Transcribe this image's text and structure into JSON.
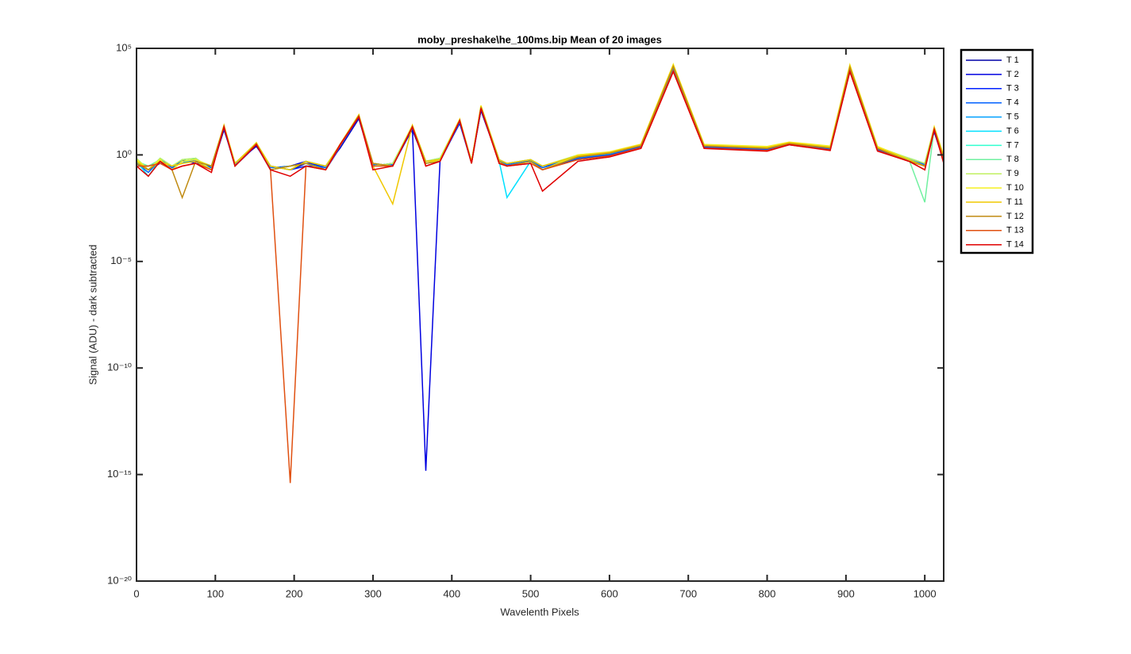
{
  "chart_data": {
    "type": "line",
    "title": "moby_preshake\\he_100ms.bip  Mean of 20 images",
    "x_label": "Wavelenth Pixels",
    "y_label": "Signal (ADU) - dark subtracted",
    "log_y": true,
    "legend": "outside-right",
    "xlim": [
      0,
      1024
    ],
    "xticks": [
      0,
      100,
      200,
      300,
      400,
      500,
      600,
      700,
      800,
      900,
      1000
    ],
    "ylim": [
      1e-20,
      100000
    ],
    "yticks": [
      {
        "value": 1e-20,
        "label": "10⁻²⁰"
      },
      {
        "value": 1e-15,
        "label": "10⁻¹⁵"
      },
      {
        "value": 1e-10,
        "label": "10⁻¹⁰"
      },
      {
        "value": 1e-05,
        "label": "10⁻⁵"
      },
      {
        "value": 1,
        "label": "10⁰"
      },
      {
        "value": 100000,
        "label": "10⁵"
      }
    ],
    "x": [
      0,
      15,
      30,
      45,
      58,
      75,
      95,
      111,
      125,
      152,
      170,
      195,
      215,
      240,
      258,
      282,
      300,
      325,
      350,
      367,
      385,
      410,
      425,
      437,
      460,
      470,
      500,
      515,
      560,
      600,
      640,
      681,
      720,
      800,
      828,
      880,
      905,
      940,
      980,
      1000,
      1012,
      1024
    ],
    "series": [
      {
        "name": "T 1",
        "color": "#0000A8",
        "values": [
          0.4,
          0.2,
          0.6,
          0.3,
          0.5,
          0.5,
          0.2,
          15,
          0.4,
          2.5,
          0.3,
          0.2,
          0.4,
          0.3,
          2,
          50,
          0.3,
          0.4,
          15,
          0.4,
          0.6,
          30,
          0.5,
          120,
          0.5,
          0.4,
          0.5,
          0.3,
          0.6,
          0.9,
          2.2,
          9000,
          2.2,
          1.6,
          3,
          1.7,
          8500,
          1.6,
          0.6,
          0.3,
          12,
          0.5
        ]
      },
      {
        "name": "T 2",
        "color": "#0000E0",
        "values": [
          0.3,
          0.3,
          0.5,
          0.2,
          0.6,
          0.4,
          0.3,
          17,
          0.3,
          2.8,
          0.2,
          0.3,
          0.5,
          0.2,
          2.2,
          55,
          0.4,
          0.3,
          17,
          1.5e-15,
          0.5,
          32,
          0.4,
          130,
          0.6,
          0.3,
          0.6,
          0.2,
          0.7,
          1,
          2.4,
          10000,
          2.3,
          1.7,
          3.2,
          1.8,
          9000,
          1.7,
          0.5,
          0.4,
          13,
          0.6
        ]
      },
      {
        "name": "T 3",
        "color": "#0020FF",
        "values": [
          0.5,
          0.2,
          0.4,
          0.3,
          0.4,
          0.6,
          0.2,
          18,
          0.4,
          3,
          0.3,
          0.2,
          0.3,
          0.3,
          2.4,
          60,
          0.3,
          0.4,
          18,
          0.5,
          0.6,
          35,
          0.5,
          140,
          0.5,
          0.4,
          0.5,
          0.3,
          0.7,
          1,
          2.5,
          11000,
          2.4,
          1.8,
          3.3,
          1.9,
          10000,
          1.8,
          0.6,
          0.3,
          14,
          0.6
        ]
      },
      {
        "name": "T 4",
        "color": "#0060FF",
        "values": [
          0.4,
          0.15,
          0.6,
          0.25,
          0.5,
          0.5,
          0.25,
          19,
          0.35,
          3.2,
          0.25,
          0.3,
          0.4,
          0.25,
          2.5,
          62,
          0.35,
          0.35,
          19,
          0.4,
          0.5,
          36,
          0.45,
          150,
          0.55,
          0.35,
          0.55,
          0.25,
          0.7,
          1.1,
          2.6,
          12000,
          2.5,
          1.9,
          3.4,
          2,
          11000,
          1.9,
          0.6,
          0.35,
          15,
          0.6
        ]
      },
      {
        "name": "T 5",
        "color": "#00A0FF",
        "values": [
          0.6,
          0.2,
          0.5,
          0.3,
          0.4,
          0.7,
          0.2,
          20,
          0.4,
          3.3,
          0.3,
          0.2,
          0.5,
          0.3,
          2.6,
          65,
          0.3,
          0.4,
          20,
          0.5,
          0.7,
          38,
          0.5,
          160,
          0.6,
          0.4,
          0.6,
          0.3,
          0.8,
          1.1,
          2.7,
          13000,
          2.6,
          2,
          3.5,
          2.1,
          12000,
          2,
          0.7,
          0.4,
          16,
          0.7
        ]
      },
      {
        "name": "T 6",
        "color": "#00E0FF",
        "values": [
          0.5,
          0.1,
          0.6,
          0.2,
          0.5,
          0.6,
          0.3,
          21,
          0.3,
          3.4,
          0.2,
          0.3,
          0.4,
          0.2,
          2.7,
          68,
          0.4,
          0.3,
          21,
          0.4,
          0.6,
          40,
          0.4,
          170,
          0.5,
          0.01,
          0.5,
          0.2,
          0.8,
          1.2,
          2.8,
          14000,
          2.7,
          2.1,
          3.6,
          2.2,
          13000,
          2.1,
          0.6,
          0.3,
          17,
          0.7
        ]
      },
      {
        "name": "T 7",
        "color": "#30FFD0",
        "values": [
          0.6,
          0.2,
          0.7,
          0.3,
          0.6,
          0.7,
          0.2,
          22,
          0.4,
          3.5,
          0.3,
          0.2,
          0.5,
          0.3,
          2.8,
          70,
          0.3,
          0.4,
          22,
          0.5,
          0.7,
          42,
          0.5,
          180,
          0.6,
          0.4,
          0.6,
          0.3,
          0.9,
          1.2,
          2.9,
          15000,
          2.8,
          2.2,
          3.7,
          2.3,
          14000,
          2.2,
          0.7,
          0.4,
          18,
          0.8
        ]
      },
      {
        "name": "T 8",
        "color": "#70F0A0",
        "values": [
          0.5,
          0.3,
          0.6,
          0.2,
          0.5,
          0.6,
          0.3,
          23,
          0.3,
          3.6,
          0.2,
          0.3,
          0.4,
          0.2,
          2.9,
          72,
          0.4,
          0.3,
          23,
          0.4,
          0.6,
          44,
          0.4,
          190,
          0.5,
          0.3,
          0.5,
          0.2,
          0.9,
          1.3,
          3,
          16000,
          2.9,
          2.3,
          3.8,
          2.4,
          15000,
          2.3,
          0.6,
          0.006,
          19,
          0.8
        ]
      },
      {
        "name": "T 9",
        "color": "#C0F060",
        "values": [
          0.7,
          0.2,
          0.7,
          0.3,
          0.6,
          0.7,
          0.2,
          24,
          0.4,
          3.7,
          0.3,
          0.2,
          0.5,
          0.3,
          3,
          75,
          0.3,
          0.4,
          24,
          0.5,
          0.7,
          46,
          0.5,
          200,
          0.6,
          0.4,
          0.6,
          0.3,
          1,
          1.3,
          3.1,
          17000,
          3,
          2.4,
          3.9,
          2.5,
          16000,
          2.4,
          0.7,
          0.4,
          20,
          0.9
        ]
      },
      {
        "name": "T 10",
        "color": "#F5F020",
        "values": [
          0.6,
          0.2,
          0.6,
          0.2,
          0.5,
          0.6,
          0.3,
          25,
          0.3,
          3.8,
          0.2,
          0.3,
          0.4,
          0.2,
          3.1,
          78,
          0.4,
          0.3,
          25,
          0.4,
          0.6,
          48,
          0.4,
          210,
          0.5,
          0.3,
          0.5,
          0.2,
          1,
          1.4,
          3.2,
          18000,
          3.1,
          2.5,
          4,
          2.6,
          17000,
          2.5,
          0.6,
          0.3,
          21,
          0.9
        ]
      },
      {
        "name": "T 11",
        "color": "#F0C800",
        "values": [
          0.5,
          0.2,
          0.5,
          0.3,
          0.4,
          0.5,
          0.2,
          24,
          0.4,
          3.6,
          0.3,
          0.2,
          0.5,
          0.3,
          2.9,
          74,
          0.3,
          0.005,
          24,
          0.5,
          0.6,
          45,
          0.5,
          190,
          0.6,
          0.4,
          0.6,
          0.3,
          0.9,
          1.3,
          3,
          16000,
          2.8,
          2.2,
          3.7,
          2.3,
          15000,
          2.2,
          0.6,
          0.3,
          19,
          0.8
        ]
      },
      {
        "name": "T 12",
        "color": "#C08A10",
        "values": [
          0.4,
          0.2,
          0.5,
          0.2,
          0.01,
          0.5,
          0.3,
          22,
          0.3,
          3.4,
          0.2,
          0.3,
          0.4,
          0.2,
          2.8,
          70,
          0.4,
          0.3,
          22,
          0.4,
          0.5,
          42,
          0.4,
          175,
          0.5,
          0.3,
          0.5,
          0.2,
          0.8,
          1.2,
          2.7,
          14000,
          2.6,
          2,
          3.4,
          2.1,
          13000,
          2,
          0.5,
          0.3,
          17,
          0.7
        ]
      },
      {
        "name": "T 13",
        "color": "#E05010",
        "values": [
          0.3,
          0.3,
          0.4,
          0.2,
          0.3,
          0.4,
          0.2,
          21,
          0.3,
          3.2,
          0.2,
          4e-16,
          0.3,
          0.2,
          2.6,
          65,
          0.3,
          0.3,
          21,
          0.3,
          0.5,
          41,
          0.4,
          160,
          0.4,
          0.3,
          0.4,
          0.2,
          0.6,
          0.9,
          2.2,
          9000,
          2.1,
          1.6,
          3.1,
          1.7,
          9000,
          1.6,
          0.5,
          0.2,
          16,
          0.5
        ]
      },
      {
        "name": "T 14",
        "color": "#E00000",
        "values": [
          0.3,
          0.1,
          0.5,
          0.2,
          0.3,
          0.4,
          0.15,
          20,
          0.3,
          3,
          0.2,
          0.1,
          0.3,
          0.2,
          3,
          60,
          0.2,
          0.3,
          20,
          0.3,
          0.5,
          40,
          0.4,
          150,
          0.4,
          0.3,
          0.4,
          0.02,
          0.5,
          0.8,
          2,
          8000,
          2,
          1.5,
          3,
          1.6,
          8000,
          1.5,
          0.5,
          0.2,
          15,
          0.4
        ]
      }
    ]
  }
}
